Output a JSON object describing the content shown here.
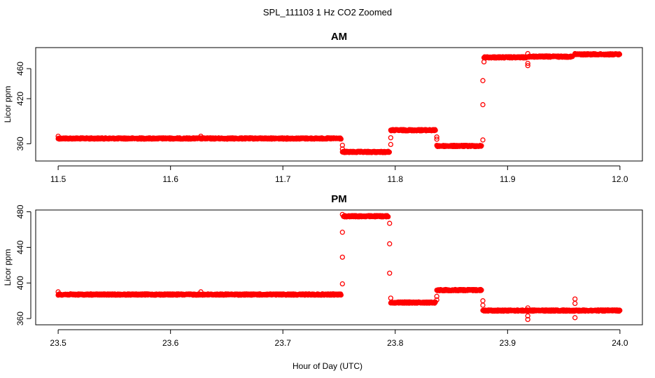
{
  "figure": {
    "title": "SPL_111103  1 Hz CO2 Zoomed",
    "xlabel": "Hour of Day (UTC)",
    "series_color": "#ff0000"
  },
  "chart_data": [
    {
      "type": "scatter",
      "title": "AM",
      "xlabel": "Hour of Day (UTC)",
      "ylabel": "Licor ppm",
      "xlim": [
        11.48,
        12.02
      ],
      "ylim": [
        337,
        488
      ],
      "xticks": [
        11.5,
        11.6,
        11.7,
        11.8,
        11.9,
        12.0
      ],
      "xtick_labels": [
        "11.5",
        "11.6",
        "11.7",
        "11.8",
        "11.9",
        "12.0"
      ],
      "yticks": [
        360,
        420,
        460
      ],
      "ytick_labels": [
        "360",
        "420",
        "460"
      ],
      "segments": [
        {
          "x0": 11.5,
          "x1": 11.752,
          "y": 367
        },
        {
          "x0": 11.753,
          "x1": 11.795,
          "y": 349
        },
        {
          "x0": 11.796,
          "x1": 11.836,
          "y": 378
        },
        {
          "x0": 11.837,
          "x1": 11.877,
          "y": 357
        },
        {
          "x0": 11.879,
          "x1": 11.917,
          "y": 475
        },
        {
          "x0": 11.918,
          "x1": 11.958,
          "y": 476
        },
        {
          "x0": 11.96,
          "x1": 12.0,
          "y": 479
        }
      ],
      "outliers": [
        {
          "x": 11.5,
          "y": 370
        },
        {
          "x": 11.627,
          "y": 370
        },
        {
          "x": 11.753,
          "y": 358
        },
        {
          "x": 11.753,
          "y": 353
        },
        {
          "x": 11.796,
          "y": 359
        },
        {
          "x": 11.796,
          "y": 368
        },
        {
          "x": 11.837,
          "y": 366
        },
        {
          "x": 11.837,
          "y": 369
        },
        {
          "x": 11.878,
          "y": 365
        },
        {
          "x": 11.878,
          "y": 444
        },
        {
          "x": 11.878,
          "y": 412
        },
        {
          "x": 11.879,
          "y": 469
        },
        {
          "x": 11.918,
          "y": 467
        },
        {
          "x": 11.918,
          "y": 464
        },
        {
          "x": 11.918,
          "y": 480
        },
        {
          "x": 11.96,
          "y": 480
        }
      ]
    },
    {
      "type": "scatter",
      "title": "PM",
      "xlabel": "Hour of Day (UTC)",
      "ylabel": "Licor ppm",
      "xlim": [
        23.48,
        24.02
      ],
      "ylim": [
        353,
        482
      ],
      "xticks": [
        23.5,
        23.6,
        23.7,
        23.8,
        23.9,
        24.0
      ],
      "xtick_labels": [
        "23.5",
        "23.6",
        "23.7",
        "23.8",
        "23.9",
        "24.0"
      ],
      "yticks": [
        360,
        400,
        440,
        480
      ],
      "ytick_labels": [
        "360",
        "400",
        "440",
        "480"
      ],
      "segments": [
        {
          "x0": 23.5,
          "x1": 23.752,
          "y": 387
        },
        {
          "x0": 23.754,
          "x1": 23.794,
          "y": 475
        },
        {
          "x0": 23.796,
          "x1": 23.836,
          "y": 378
        },
        {
          "x0": 23.837,
          "x1": 23.877,
          "y": 392
        },
        {
          "x0": 23.878,
          "x1": 24.0,
          "y": 369
        }
      ],
      "outliers": [
        {
          "x": 23.5,
          "y": 390
        },
        {
          "x": 23.627,
          "y": 390
        },
        {
          "x": 23.753,
          "y": 399
        },
        {
          "x": 23.753,
          "y": 429
        },
        {
          "x": 23.753,
          "y": 457
        },
        {
          "x": 23.753,
          "y": 477
        },
        {
          "x": 23.795,
          "y": 467
        },
        {
          "x": 23.795,
          "y": 444
        },
        {
          "x": 23.795,
          "y": 411
        },
        {
          "x": 23.796,
          "y": 383
        },
        {
          "x": 23.837,
          "y": 381
        },
        {
          "x": 23.837,
          "y": 385
        },
        {
          "x": 23.878,
          "y": 380
        },
        {
          "x": 23.878,
          "y": 375
        },
        {
          "x": 23.918,
          "y": 372
        },
        {
          "x": 23.918,
          "y": 363
        },
        {
          "x": 23.918,
          "y": 359
        },
        {
          "x": 23.96,
          "y": 382
        },
        {
          "x": 23.96,
          "y": 377
        },
        {
          "x": 23.96,
          "y": 361
        }
      ]
    }
  ]
}
